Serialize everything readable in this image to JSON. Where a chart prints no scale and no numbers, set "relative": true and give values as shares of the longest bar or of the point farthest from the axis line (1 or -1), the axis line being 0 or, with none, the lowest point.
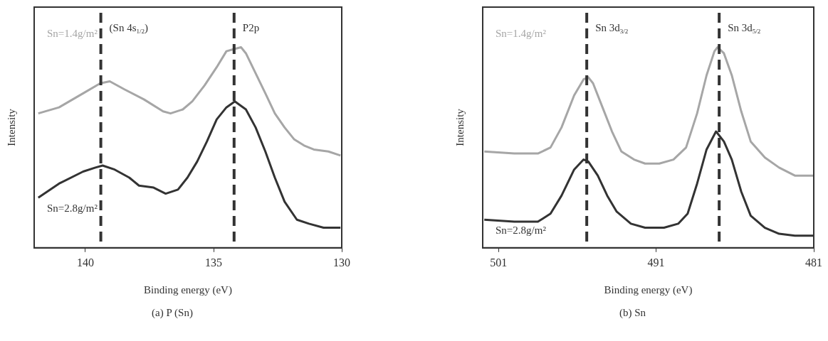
{
  "chart_data": [
    {
      "type": "line",
      "title": "(a) P (Sn)",
      "xlabel": "Binding energy (eV)",
      "ylabel": "Intensity",
      "relative": true,
      "line_style": "solid",
      "marker": "none",
      "xlim": [
        142,
        130
      ],
      "xticks": [
        140,
        135,
        130
      ],
      "series": [
        {
          "name": "Sn=1.4g/m²",
          "color": "#a6a6a6",
          "x": [
            141.84,
            141.03,
            140.09,
            139.42,
            139.05,
            138.48,
            137.72,
            136.97,
            136.68,
            136.2,
            135.83,
            135.35,
            134.88,
            134.5,
            134.22,
            133.93,
            133.74,
            133.36,
            132.98,
            132.61,
            132.23,
            131.85,
            131.47,
            131.09,
            130.52,
            130.05
          ],
          "values": [
            0.67,
            0.7,
            0.77,
            0.82,
            0.83,
            0.79,
            0.74,
            0.68,
            0.67,
            0.69,
            0.73,
            0.81,
            0.9,
            0.98,
            0.99,
            1.0,
            0.97,
            0.87,
            0.77,
            0.67,
            0.6,
            0.54,
            0.51,
            0.49,
            0.48,
            0.46
          ]
        },
        {
          "name": "Sn=2.8g/m²",
          "color": "#333333",
          "x": [
            141.84,
            141.03,
            140.09,
            139.61,
            139.33,
            138.86,
            138.29,
            137.91,
            137.34,
            136.87,
            136.39,
            136.02,
            135.64,
            135.26,
            134.88,
            134.5,
            134.17,
            133.74,
            133.36,
            132.98,
            132.61,
            132.23,
            131.75,
            131.28,
            130.71,
            130.05
          ],
          "values": [
            0.25,
            0.32,
            0.38,
            0.4,
            0.41,
            0.39,
            0.35,
            0.31,
            0.3,
            0.27,
            0.29,
            0.35,
            0.43,
            0.53,
            0.64,
            0.7,
            0.73,
            0.69,
            0.6,
            0.48,
            0.35,
            0.23,
            0.14,
            0.12,
            0.1,
            0.1
          ]
        }
      ],
      "ref_lines": [
        {
          "axis": "x",
          "value": 139.4,
          "color": "#333333",
          "line_style": "dashed",
          "label": "(Sn 4s$_{1/2}$)"
        },
        {
          "axis": "x",
          "value": 134.2,
          "color": "#333333",
          "line_style": "dashed",
          "label": "P2p"
        }
      ]
    },
    {
      "type": "line",
      "title": "(b) Sn",
      "xlabel": "Binding energy (eV)",
      "ylabel": "Intensity",
      "relative": true,
      "line_style": "solid",
      "marker": "none",
      "xlim": [
        502,
        481
      ],
      "xticks": [
        501,
        491,
        481
      ],
      "series": [
        {
          "name": "Sn=1.4g/m²",
          "color": "#a6a6a6",
          "x": [
            501.9,
            500.0,
            498.5,
            497.7,
            497.0,
            496.2,
            495.6,
            495.3,
            495.0,
            494.4,
            493.8,
            493.2,
            492.4,
            491.7,
            490.8,
            489.9,
            489.1,
            488.4,
            487.8,
            487.3,
            487.1,
            486.7,
            486.2,
            485.6,
            485.0,
            484.1,
            483.2,
            482.2,
            481.0
          ],
          "values": [
            0.48,
            0.47,
            0.47,
            0.5,
            0.6,
            0.76,
            0.84,
            0.85,
            0.82,
            0.7,
            0.58,
            0.48,
            0.44,
            0.42,
            0.42,
            0.44,
            0.5,
            0.67,
            0.86,
            0.98,
            1.0,
            0.97,
            0.86,
            0.68,
            0.53,
            0.45,
            0.4,
            0.36,
            0.36
          ]
        },
        {
          "name": "Sn=2.8g/m²",
          "color": "#333333",
          "x": [
            501.9,
            500.0,
            498.5,
            497.7,
            497.0,
            496.2,
            495.6,
            495.3,
            494.7,
            494.1,
            493.5,
            492.6,
            491.7,
            490.5,
            489.6,
            489.0,
            488.4,
            487.8,
            487.2,
            486.7,
            486.2,
            485.6,
            485.0,
            484.1,
            483.2,
            482.2,
            481.0
          ],
          "values": [
            0.14,
            0.13,
            0.13,
            0.17,
            0.26,
            0.39,
            0.44,
            0.43,
            0.36,
            0.26,
            0.18,
            0.12,
            0.1,
            0.1,
            0.12,
            0.17,
            0.32,
            0.49,
            0.58,
            0.53,
            0.44,
            0.28,
            0.16,
            0.1,
            0.07,
            0.06,
            0.06
          ]
        }
      ],
      "ref_lines": [
        {
          "axis": "x",
          "value": 495.4,
          "color": "#333333",
          "line_style": "dashed",
          "label": "Sn 3d$_{3/2}$"
        },
        {
          "axis": "x",
          "value": 487.0,
          "color": "#333333",
          "line_style": "dashed",
          "label": "Sn 3d$_{5/2}$"
        }
      ]
    }
  ]
}
